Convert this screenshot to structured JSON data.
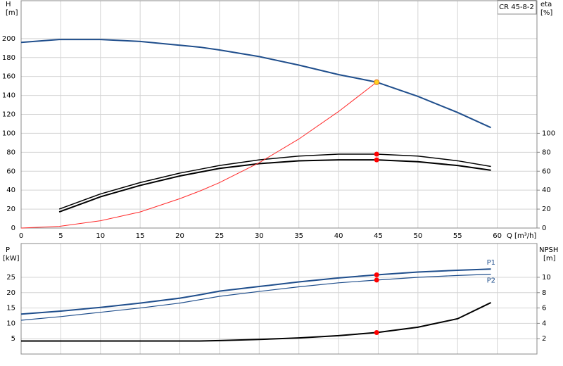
{
  "chart_data": [
    {
      "type": "line",
      "title": "CR 45-8-2",
      "y_label": "H",
      "y_unit": "[m]",
      "y2_label": "eta",
      "y2_unit": "[%]",
      "x_label": "Q [m³/h]",
      "x": [
        0,
        4.8,
        10,
        15,
        20,
        22.5,
        25,
        30,
        35,
        40,
        44.8,
        50,
        55,
        59.2
      ],
      "xlim": [
        0,
        65
      ],
      "xticks": [
        0,
        5,
        10,
        15,
        20,
        25,
        30,
        35,
        40,
        45,
        50,
        55,
        60
      ],
      "ylim": [
        0,
        240
      ],
      "yticks": [
        0,
        20,
        40,
        60,
        80,
        100,
        120,
        140,
        160,
        180,
        200
      ],
      "y2lim": [
        0,
        240
      ],
      "y2ticks": [
        0,
        20,
        40,
        60,
        80,
        100
      ],
      "grid": true,
      "series": [
        {
          "color": "#1f4e8c",
          "width": 2,
          "values": [
            196,
            199,
            199,
            197,
            193,
            191,
            188,
            181,
            172,
            162,
            154,
            139,
            122,
            106
          ]
        },
        {
          "color": "#000000",
          "width": 1.5,
          "axis": "y2",
          "values": [
            null,
            20,
            36,
            48,
            58,
            62,
            66,
            72,
            76,
            78,
            78,
            76,
            71,
            65
          ]
        },
        {
          "color": "#000000",
          "width": 2,
          "axis": "y2",
          "values": [
            null,
            17,
            33,
            45,
            55,
            59,
            63,
            68,
            71,
            72,
            72,
            70,
            66,
            61
          ]
        },
        {
          "color": "#ff2a2a",
          "width": 1,
          "values": [
            0,
            1.8,
            7.7,
            17,
            31,
            39,
            48,
            69,
            94,
            123,
            154,
            null,
            null,
            null
          ]
        }
      ],
      "points": [
        {
          "x": 44.8,
          "y": 78,
          "axis": "y2",
          "color": "#ff0000"
        },
        {
          "x": 44.8,
          "y": 72,
          "axis": "y2",
          "color": "#ff0000"
        },
        {
          "x": 44.8,
          "y": 154,
          "color": "#ffd21f"
        }
      ]
    },
    {
      "type": "line",
      "y_label": "P",
      "y_unit": "[kW]",
      "y2_label": "NPSH",
      "y2_unit": "[m]",
      "x": [
        0,
        5,
        10,
        15,
        20,
        22.5,
        25,
        30,
        35,
        40,
        44.8,
        50,
        55,
        59.2
      ],
      "xlim": [
        0,
        65
      ],
      "ylim": [
        0,
        36
      ],
      "yticks": [
        5,
        10,
        15,
        20,
        25
      ],
      "y2lim": [
        0,
        14.4
      ],
      "y2ticks": [
        2,
        4,
        6,
        8,
        10
      ],
      "grid": true,
      "series": [
        {
          "name": "P1",
          "color": "#1f4e8c",
          "width": 2,
          "values": [
            13,
            14,
            15.2,
            16.6,
            18.2,
            19.3,
            20.5,
            22,
            23.5,
            24.8,
            25.8,
            26.7,
            27.3,
            27.7
          ]
        },
        {
          "name": "P2",
          "color": "#1f4e8c",
          "width": 1.2,
          "values": [
            11,
            12.2,
            13.6,
            15,
            16.6,
            17.7,
            18.8,
            20.4,
            21.9,
            23.2,
            24.1,
            25,
            25.6,
            26
          ]
        },
        {
          "color": "#000000",
          "width": 2,
          "axis": "y2",
          "values": [
            1.7,
            1.7,
            1.7,
            1.7,
            1.7,
            1.7,
            1.75,
            1.9,
            2.1,
            2.4,
            2.8,
            3.5,
            4.6,
            6.7
          ]
        }
      ],
      "points": [
        {
          "x": 44.8,
          "y": 25.8,
          "color": "#ff0000"
        },
        {
          "x": 44.8,
          "y": 24.1,
          "color": "#ff0000"
        },
        {
          "x": 44.8,
          "y": 2.8,
          "axis": "y2",
          "color": "#ff0000"
        }
      ]
    }
  ]
}
